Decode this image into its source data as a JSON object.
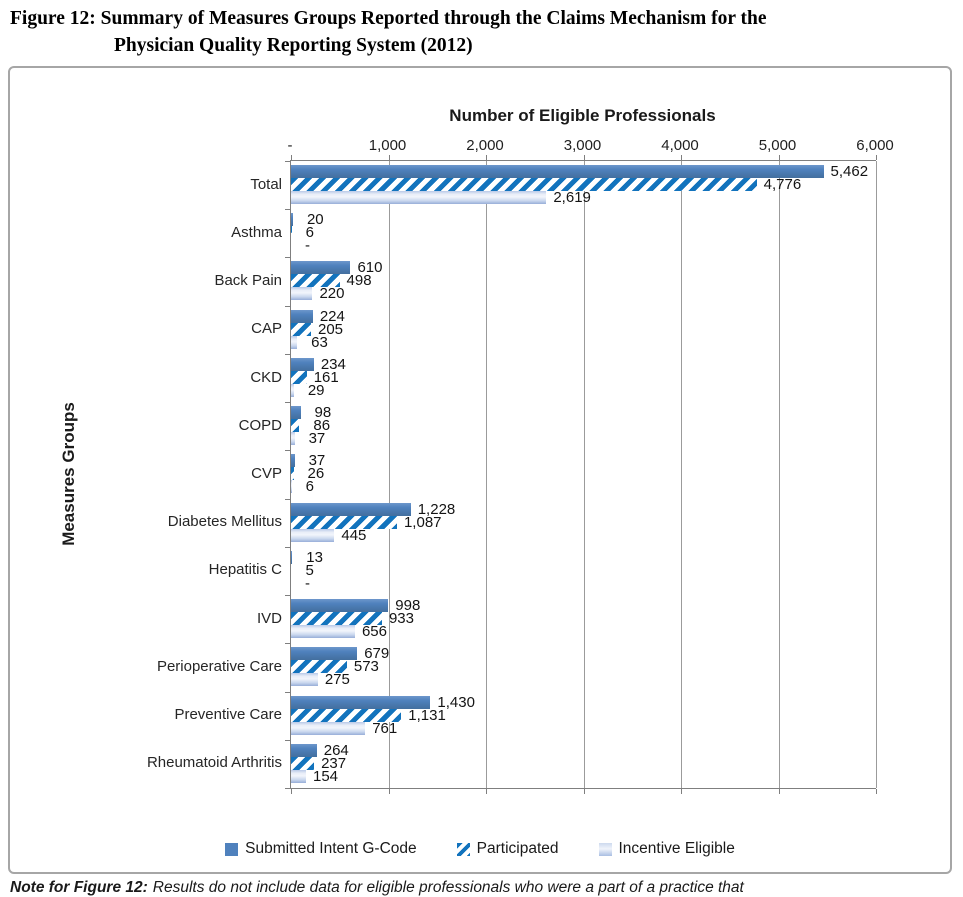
{
  "fig_title": {
    "line1": "Figure 12: Summary of Measures Groups Reported through the Claims Mechanism for the",
    "line2": "Physician Quality Reporting System (2012)"
  },
  "chart_data": {
    "type": "bar",
    "orientation": "horizontal",
    "xlabel": "Number of Eligible Professionals",
    "ylabel": "Measures Groups",
    "xlim": [
      0,
      6000
    ],
    "x_ticks": [
      "-",
      "1,000",
      "2,000",
      "3,000",
      "4,000",
      "5,000",
      "6,000"
    ],
    "x_tick_values": [
      0,
      1000,
      2000,
      3000,
      4000,
      5000,
      6000
    ],
    "grid": "vertical",
    "legend_position": "bottom",
    "categories": [
      "Total",
      "Asthma",
      "Back Pain",
      "CAP",
      "CKD",
      "COPD",
      "CVP",
      "Diabetes Mellitus",
      "Hepatitis C",
      "IVD",
      "Perioperative Care",
      "Preventive Care",
      "Rheumatoid Arthritis"
    ],
    "series": [
      {
        "name": "Submitted Intent G-Code",
        "values": [
          5462,
          20,
          610,
          224,
          234,
          98,
          37,
          1228,
          13,
          998,
          679,
          1430,
          264
        ],
        "labels": [
          "5,462",
          "20",
          "610",
          "224",
          "234",
          "98",
          "37",
          "1,228",
          "13",
          "998",
          "679",
          "1,430",
          "264"
        ]
      },
      {
        "name": "Participated",
        "values": [
          4776,
          6,
          498,
          205,
          161,
          86,
          26,
          1087,
          5,
          933,
          573,
          1131,
          237
        ],
        "labels": [
          "4,776",
          "6",
          "498",
          "205",
          "161",
          "86",
          "26",
          "1,087",
          "5",
          "933",
          "573",
          "1,131",
          "237"
        ]
      },
      {
        "name": "Incentive Eligible",
        "values": [
          2619,
          0,
          220,
          63,
          29,
          37,
          6,
          445,
          0,
          656,
          275,
          761,
          154
        ],
        "labels": [
          "2,619",
          "-",
          "220",
          "63",
          "29",
          "37",
          "6",
          "445",
          "-",
          "656",
          "275",
          "761",
          "154"
        ]
      }
    ]
  },
  "colors": {
    "bar_solid": "#4F81BD",
    "bar_hatch_stripe": "#1273BD",
    "bar_light_gradient_top": "#E9EEF8",
    "bar_light_gradient_bottom": "#97AED8",
    "gridline": "#9B9B9B",
    "axis_line": "#7F7F7F",
    "frame_border": "#A6A6A6"
  },
  "note": {
    "prefix": "Note for Figure 12:",
    "text": "Results do not include data for eligible professionals who were a part of a practice that"
  }
}
